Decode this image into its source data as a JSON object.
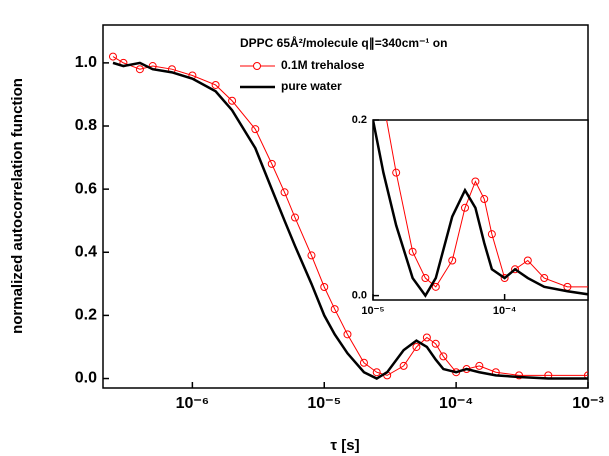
{
  "chart_data": {
    "type": "line",
    "y_label": "normalized autocorrelation function",
    "x_label": "τ [s]",
    "annotation": "DPPC 65Å²/molecule q∥=340cm⁻¹ on",
    "log_x": true,
    "x": [
      2.5e-07,
      3e-07,
      4e-07,
      5e-07,
      7e-07,
      1e-06,
      1.5e-06,
      2e-06,
      3e-06,
      4e-06,
      5e-06,
      6e-06,
      8e-06,
      1e-05,
      1.2e-05,
      1.5e-05,
      2e-05,
      2.5e-05,
      3e-05,
      4e-05,
      5e-05,
      6e-05,
      7e-05,
      8e-05,
      0.0001,
      0.00012,
      0.00015,
      0.0002,
      0.0003,
      0.0005,
      0.001
    ],
    "series": [
      {
        "name": "0.1M trehalose",
        "color": "#ff0000",
        "marker": "circle",
        "values": [
          1.02,
          1.0,
          0.98,
          0.99,
          0.98,
          0.96,
          0.93,
          0.88,
          0.79,
          0.68,
          0.59,
          0.51,
          0.39,
          0.29,
          0.22,
          0.14,
          0.05,
          0.02,
          0.01,
          0.04,
          0.1,
          0.13,
          0.11,
          0.07,
          0.02,
          0.03,
          0.04,
          0.02,
          0.01,
          0.01,
          0.01
        ]
      },
      {
        "name": "pure water",
        "color": "#000000",
        "values": [
          1.0,
          0.99,
          1.0,
          0.98,
          0.97,
          0.95,
          0.91,
          0.85,
          0.73,
          0.6,
          0.5,
          0.42,
          0.3,
          0.2,
          0.14,
          0.08,
          0.02,
          0.0,
          0.02,
          0.09,
          0.12,
          0.1,
          0.06,
          0.03,
          0.02,
          0.03,
          0.02,
          0.01,
          0.005,
          0.0,
          0.0
        ]
      }
    ],
    "xlim": [
      2.1e-07,
      0.001
    ],
    "ylim": [
      -0.03,
      1.12
    ],
    "xticks": [
      {
        "value": 1e-06,
        "label": "10⁻⁶"
      },
      {
        "value": 1e-05,
        "label": "10⁻⁵"
      },
      {
        "value": 0.0001,
        "label": "10⁻⁴"
      },
      {
        "value": 0.001,
        "label": "10⁻³"
      }
    ],
    "yticks": [
      {
        "value": 0,
        "label": "0.0"
      },
      0.2,
      0.4,
      0.6,
      0.8,
      {
        "value": 1,
        "label": "1.0"
      }
    ],
    "inset": {
      "xlim": [
        1e-05,
        0.00043
      ],
      "ylim": [
        -0.005,
        0.2
      ],
      "xticks": [
        {
          "value": 1e-05,
          "label": "10⁻⁵"
        },
        {
          "value": 0.0001,
          "label": "10⁻⁴"
        }
      ],
      "yticks": [
        {
          "value": 0,
          "label": "0.0"
        },
        0.2
      ]
    }
  }
}
